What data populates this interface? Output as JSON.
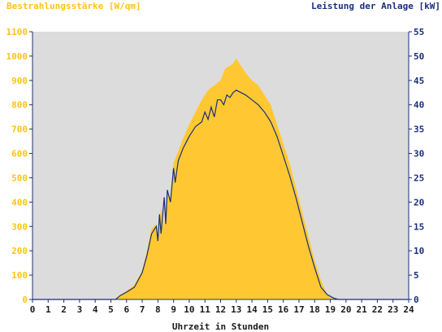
{
  "colors": {
    "plot_bg": "#dcdcdc",
    "irradiance_fill": "#ffc832",
    "irradiance_label": "#ffc21a",
    "power_line": "#1a2f7a",
    "axis": "#1a2f7a",
    "x_label": "#1a1a1a"
  },
  "chart_data": {
    "type": "area",
    "left_axis_title": "Bestrahlungsstärke [W/qm]",
    "right_axis_title": "Leistung der Anlage [kW]",
    "xlabel": "Uhrzeit in Stunden",
    "xlim": [
      0,
      24
    ],
    "ylim_left": [
      0,
      1100
    ],
    "ylim_right": [
      0,
      55
    ],
    "x_ticks": [
      "0",
      "1",
      "2",
      "3",
      "4",
      "5",
      "6",
      "7",
      "8",
      "9",
      "10",
      "11",
      "12",
      "13",
      "14",
      "15",
      "16",
      "17",
      "18",
      "19",
      "20",
      "21",
      "22",
      "23",
      "24"
    ],
    "left_ticks": [
      "0",
      "100",
      "200",
      "300",
      "400",
      "500",
      "600",
      "700",
      "800",
      "900",
      "1000",
      "1100"
    ],
    "right_ticks": [
      "0",
      "5",
      "10",
      "15",
      "20",
      "25",
      "30",
      "35",
      "40",
      "45",
      "50",
      "55"
    ],
    "grid": false,
    "series": [
      {
        "name": "Bestrahlungsstärke [W/qm]",
        "axis": "left",
        "style": "area",
        "x": [
          0,
          5.3,
          5.6,
          6.0,
          6.5,
          7.0,
          7.3,
          7.6,
          7.9,
          8.0,
          8.2,
          8.4,
          8.6,
          8.8,
          9.0,
          9.3,
          9.6,
          10.0,
          10.4,
          10.8,
          11.2,
          11.6,
          12.0,
          12.3,
          12.6,
          12.8,
          13.0,
          13.3,
          13.6,
          14.0,
          14.4,
          14.8,
          15.2,
          15.6,
          16.0,
          16.4,
          16.8,
          17.2,
          17.6,
          18.0,
          18.4,
          18.8,
          19.2,
          19.5,
          20.0,
          24
        ],
        "y": [
          0,
          0,
          20,
          35,
          60,
          120,
          200,
          290,
          310,
          240,
          380,
          300,
          440,
          420,
          560,
          610,
          660,
          720,
          770,
          820,
          860,
          880,
          900,
          950,
          960,
          970,
          990,
          960,
          930,
          900,
          880,
          840,
          800,
          720,
          640,
          560,
          460,
          360,
          260,
          160,
          80,
          20,
          5,
          0,
          0,
          0
        ]
      },
      {
        "name": "Leistung der Anlage [kW]",
        "axis": "right",
        "style": "line",
        "x": [
          0,
          5.3,
          5.6,
          6.0,
          6.5,
          7.0,
          7.3,
          7.6,
          7.9,
          8.0,
          8.1,
          8.2,
          8.4,
          8.5,
          8.6,
          8.8,
          9.0,
          9.1,
          9.3,
          9.6,
          10.0,
          10.4,
          10.8,
          11.0,
          11.2,
          11.4,
          11.6,
          11.8,
          12.0,
          12.2,
          12.4,
          12.6,
          12.8,
          13.0,
          13.3,
          13.6,
          14.0,
          14.4,
          14.8,
          15.2,
          15.6,
          16.0,
          16.4,
          16.8,
          17.2,
          17.6,
          18.0,
          18.4,
          18.8,
          19.2,
          19.5,
          20.0,
          24
        ],
        "y": [
          0,
          0,
          0.8,
          1.5,
          2.5,
          5.5,
          9.0,
          13.5,
          15.0,
          12.0,
          17.5,
          13.5,
          21.0,
          15.5,
          22.5,
          20.0,
          27.0,
          24.0,
          28.5,
          31.0,
          33.5,
          35.5,
          36.5,
          38.5,
          37.0,
          39.5,
          37.5,
          41.0,
          41.0,
          40.0,
          42.0,
          41.5,
          42.5,
          43.0,
          42.5,
          42.0,
          41.0,
          40.0,
          38.5,
          36.5,
          33.5,
          29.5,
          25.5,
          21.0,
          16.0,
          11.0,
          6.5,
          2.5,
          1.0,
          0.3,
          0,
          0,
          0
        ]
      }
    ]
  }
}
